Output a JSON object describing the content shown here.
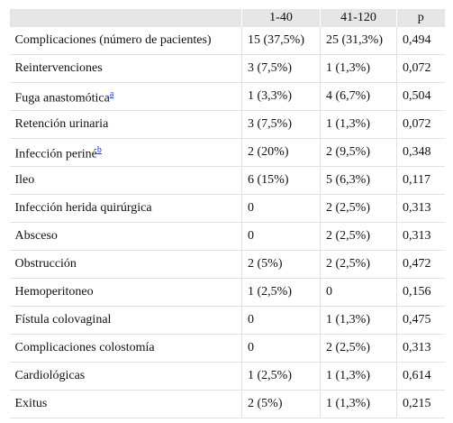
{
  "table": {
    "header": [
      "1-40",
      "41-120",
      "p"
    ],
    "rows": [
      {
        "cells": [
          "Complicaciones (número de pacientes)",
          "15 (37,5%)",
          "25 (31,3%)",
          "0,494"
        ]
      },
      {
        "cells": [
          "Reintervenciones",
          "3 (7,5%)",
          "1 (1,3%)",
          "0,072"
        ]
      },
      {
        "cells": [
          "Fuga anastomótica",
          "1 (3,3%)",
          "4 (6,7%)",
          "0,504"
        ],
        "sup": "a"
      },
      {
        "cells": [
          "Retención urinaria",
          "3 (7,5%)",
          "1 (1,3%)",
          "0,072"
        ]
      },
      {
        "cells": [
          "Infección periné",
          "2 (20%)",
          "2 (9,5%)",
          "0,348"
        ],
        "sup": "b"
      },
      {
        "cells": [
          "Ileo",
          "6 (15%)",
          "5 (6,3%)",
          "0,117"
        ]
      },
      {
        "cells": [
          "Infección herida quirúrgica",
          "0",
          "2 (2,5%)",
          "0,313"
        ]
      },
      {
        "cells": [
          "Absceso",
          "0",
          "2 (2,5%)",
          "0,313"
        ]
      },
      {
        "cells": [
          "Obstrucción",
          "2 (5%)",
          "2 (2,5%)",
          "0,472"
        ]
      },
      {
        "cells": [
          "Hemoperitoneo",
          "1 (2,5%)",
          "0",
          "0,156"
        ]
      },
      {
        "cells": [
          "Fístula colovaginal",
          "0",
          "1 (1,3%)",
          "0,475"
        ]
      },
      {
        "cells": [
          "Complicaciones colostomía",
          "0",
          "2 (2,5%)",
          "0,313"
        ]
      },
      {
        "cells": [
          "Cardiológicas",
          "1 (2,5%)",
          "1 (1,3%)",
          "0,614"
        ]
      },
      {
        "cells": [
          "Exitus",
          "2 (5%)",
          "1 (1,3%)",
          "0,215"
        ]
      }
    ]
  }
}
